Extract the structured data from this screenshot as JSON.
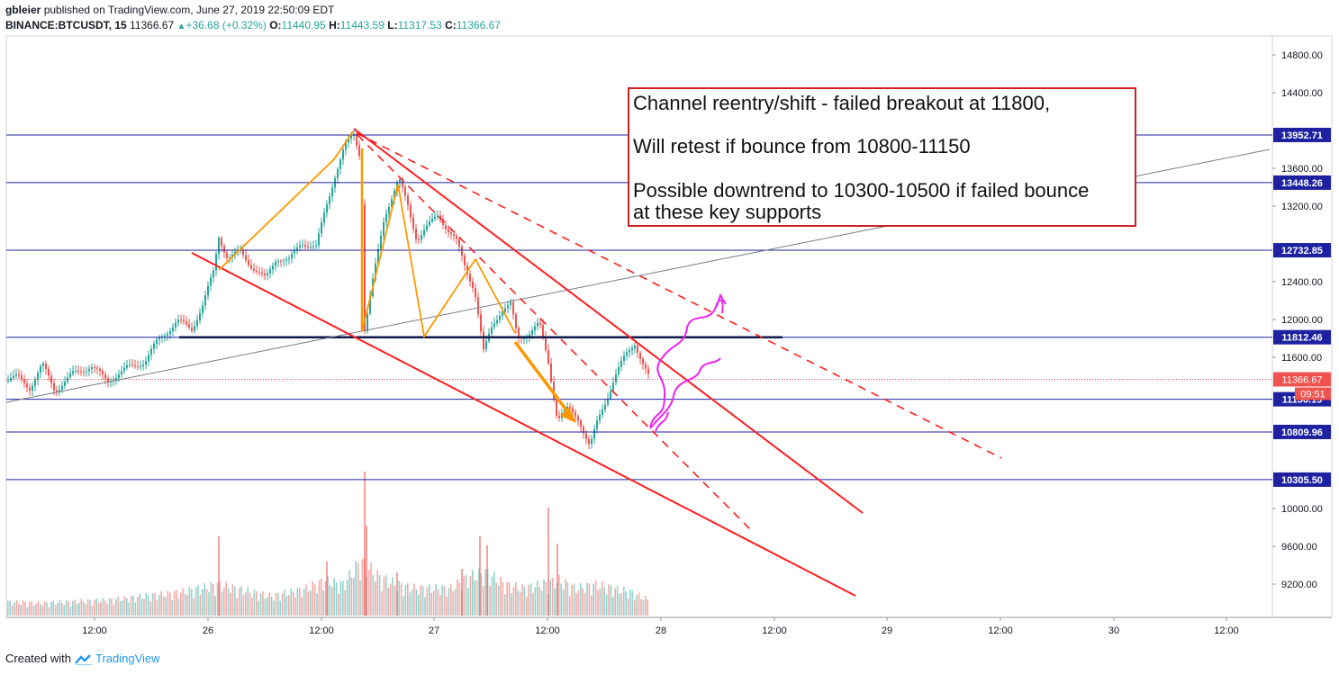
{
  "header": {
    "author": "gbleier",
    "published": "published on TradingView.com, June 27, 2019 22:50:09 EDT",
    "symbol": "BINANCE:BTCUSDT, 15",
    "last": "11366.67",
    "change_arrow": "▲",
    "change": "+36.68 (+0.32%)",
    "o_label": "O:",
    "o": "11440.95",
    "h_label": "H:",
    "h": "11443.59",
    "l_label": "L:",
    "l": "11317.53",
    "c_label": "C:",
    "c": "11366.67"
  },
  "footer": {
    "created": "Created with",
    "brand": "TradingView"
  },
  "annotation": {
    "line1": "Channel reentry/shift - failed breakout at 11800,",
    "line2": "Will retest if bounce from 10800-11150",
    "line3": "Possible downtrend to 10300-10500 if failed bounce",
    "line4": "at these key supports"
  },
  "colors": {
    "up": "#26a69a",
    "down": "#ef5350",
    "level": "#1e22a0",
    "trend": "#ff1e1e",
    "pattern": "#ff9800",
    "projection": "#ee22ee"
  },
  "chart_data": {
    "type": "candlestick",
    "x_ticks": [
      "12:00",
      "26",
      "12:00",
      "27",
      "12:00",
      "28",
      "12:00",
      "29",
      "12:00",
      "30",
      "12:00"
    ],
    "y_ticks": [
      14800,
      14400,
      13600,
      13200,
      12400,
      12000,
      11600,
      10000,
      9600,
      9200
    ],
    "y_tick_labels": [
      "14800.00",
      "14400.00",
      "13600.00",
      "13200.00",
      "12400.00",
      "12000.00",
      "11600.00",
      "10000.00",
      "9600.00",
      "9200.00"
    ],
    "ylim": [
      8880,
      14900
    ],
    "last_price": {
      "value": 11366.67,
      "label": "11366.67",
      "countdown": "09:51"
    },
    "levels": [
      {
        "value": 13952.71,
        "label": "13952.71"
      },
      {
        "value": 13448.26,
        "label": "13448.26"
      },
      {
        "value": 12732.85,
        "label": "12732.85"
      },
      {
        "value": 11812.46,
        "label": "11812.46"
      },
      {
        "value": 11156.19,
        "label": "11156.19"
      },
      {
        "value": 10809.96,
        "label": "10809.96"
      },
      {
        "value": 10305.5,
        "label": "10305.50"
      }
    ],
    "price_path": [
      [
        0,
        11350
      ],
      [
        18,
        11390
      ],
      [
        32,
        11280
      ],
      [
        46,
        11520
      ],
      [
        60,
        11250
      ],
      [
        80,
        11420
      ],
      [
        100,
        11510
      ],
      [
        118,
        11350
      ],
      [
        140,
        11480
      ],
      [
        160,
        11560
      ],
      [
        176,
        11800
      ],
      [
        196,
        11980
      ],
      [
        212,
        11900
      ],
      [
        224,
        12150
      ],
      [
        236,
        12500
      ],
      [
        242,
        12880
      ],
      [
        252,
        12650
      ],
      [
        266,
        12710
      ],
      [
        280,
        12550
      ],
      [
        294,
        12420
      ],
      [
        306,
        12660
      ],
      [
        320,
        12620
      ],
      [
        334,
        12820
      ],
      [
        350,
        12760
      ],
      [
        360,
        13150
      ],
      [
        370,
        13500
      ],
      [
        382,
        13830
      ],
      [
        392,
        13960
      ],
      [
        400,
        13700
      ],
      [
        404,
        11900
      ],
      [
        414,
        12450
      ],
      [
        426,
        13100
      ],
      [
        434,
        13300
      ],
      [
        442,
        13480
      ],
      [
        452,
        13200
      ],
      [
        462,
        12850
      ],
      [
        474,
        12980
      ],
      [
        486,
        13120
      ],
      [
        496,
        12950
      ],
      [
        506,
        12820
      ],
      [
        516,
        12550
      ],
      [
        526,
        12320
      ],
      [
        536,
        11650
      ],
      [
        546,
        11950
      ],
      [
        556,
        12100
      ],
      [
        566,
        12150
      ],
      [
        574,
        11800
      ],
      [
        586,
        11860
      ],
      [
        598,
        11950
      ],
      [
        608,
        11550
      ],
      [
        618,
        10950
      ],
      [
        630,
        11050
      ],
      [
        642,
        10950
      ],
      [
        654,
        10650
      ],
      [
        662,
        10900
      ],
      [
        672,
        11150
      ],
      [
        682,
        11400
      ],
      [
        694,
        11620
      ],
      [
        704,
        11760
      ],
      [
        712,
        11550
      ],
      [
        720,
        11370
      ]
    ],
    "volume_path": [
      [
        0,
        18
      ],
      [
        40,
        16
      ],
      [
        80,
        18
      ],
      [
        120,
        20
      ],
      [
        160,
        25
      ],
      [
        200,
        30
      ],
      [
        242,
        40
      ],
      [
        260,
        35
      ],
      [
        300,
        25
      ],
      [
        340,
        35
      ],
      [
        360,
        45
      ],
      [
        380,
        40
      ],
      [
        400,
        70
      ],
      [
        420,
        50
      ],
      [
        440,
        40
      ],
      [
        460,
        35
      ],
      [
        500,
        35
      ],
      [
        520,
        50
      ],
      [
        540,
        55
      ],
      [
        560,
        40
      ],
      [
        580,
        35
      ],
      [
        600,
        40
      ],
      [
        620,
        45
      ],
      [
        640,
        35
      ],
      [
        660,
        40
      ],
      [
        680,
        35
      ],
      [
        700,
        30
      ],
      [
        720,
        20
      ]
    ],
    "volume_spikes": [
      [
        242,
        88
      ],
      [
        362,
        60
      ],
      [
        404,
        160
      ],
      [
        406,
        100
      ],
      [
        532,
        88
      ],
      [
        540,
        78
      ],
      [
        608,
        120
      ],
      [
        618,
        80
      ],
      [
        440,
        48
      ],
      [
        512,
        52
      ]
    ]
  }
}
